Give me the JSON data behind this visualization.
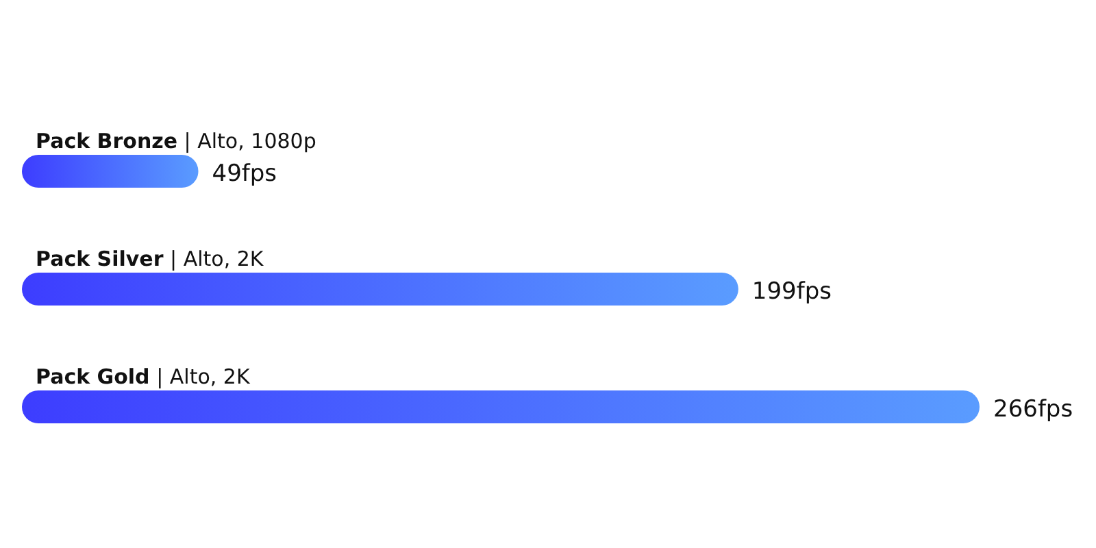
{
  "chart_data": {
    "type": "bar",
    "orientation": "horizontal",
    "categories": [
      "Pack Bronze | Alto, 1080p",
      "Pack Silver | Alto, 2K",
      "Pack Gold | Alto, 2K"
    ],
    "values": [
      49,
      199,
      266
    ],
    "value_labels": [
      "49fps",
      "199fps",
      "266fps"
    ],
    "color": "#3d3dff"
  }
}
